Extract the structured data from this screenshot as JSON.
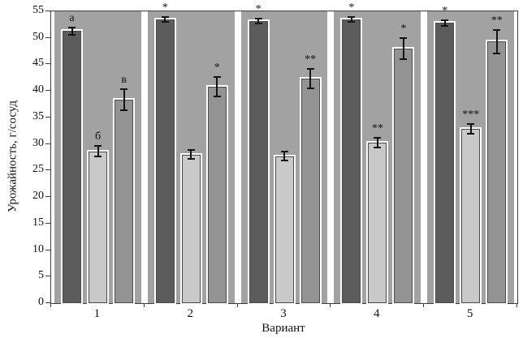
{
  "chart_data": {
    "type": "bar",
    "title": "",
    "ylabel": "Урожайность, г/сосуд",
    "xlabel": "Вариант",
    "ylim": [
      0,
      55
    ],
    "ytick_step": 5,
    "yticks": [
      "0",
      "5",
      "10",
      "15",
      "20",
      "25",
      "30",
      "35",
      "40",
      "45",
      "50",
      "55"
    ],
    "categories": [
      "1",
      "2",
      "3",
      "4",
      "5"
    ],
    "grid": false,
    "legend": "none",
    "plot_bg": "#ffffff",
    "band_color": "#a2a2a2",
    "series": [
      {
        "name": "series-dark",
        "color": "#5c5c5c",
        "values": [
          51.3,
          53.5,
          53.2,
          53.5,
          52.8
        ],
        "errors": [
          0.7,
          0.5,
          0.5,
          0.5,
          0.5
        ],
        "labels": [
          "а",
          "*",
          "*",
          "*",
          "*"
        ]
      },
      {
        "name": "series-light",
        "color": "#c9c9c9",
        "values": [
          28.6,
          28.0,
          27.7,
          30.3,
          32.8
        ],
        "errors": [
          1.0,
          0.8,
          0.8,
          0.9,
          0.9
        ],
        "labels": [
          "б",
          "",
          "",
          "**",
          "***"
        ]
      },
      {
        "name": "series-medium",
        "color": "#939393",
        "values": [
          38.4,
          40.8,
          42.3,
          48.0,
          49.3
        ],
        "errors": [
          2.0,
          1.8,
          1.8,
          2.0,
          2.2
        ],
        "labels": [
          "в",
          "*",
          "**",
          "*",
          "**"
        ]
      }
    ]
  }
}
